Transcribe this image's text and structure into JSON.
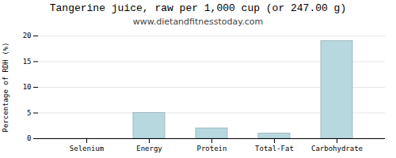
{
  "chart_data": {
    "type": "bar",
    "title": "Tangerine juice, raw per 1,000 cup (or 247.00 g)",
    "subtitle": "www.dietandfitnesstoday.com",
    "categories": [
      "Selenium",
      "Energy",
      "Protein",
      "Total-Fat",
      "Carbohydrate"
    ],
    "values": [
      0.0,
      5.0,
      2.0,
      1.0,
      19.0
    ],
    "color": "#b8d8e0",
    "ylabel": "Percentage of RDH (%)",
    "ylim": [
      0,
      20
    ],
    "yticks": [
      0,
      5,
      10,
      15,
      20
    ],
    "grid": true
  }
}
